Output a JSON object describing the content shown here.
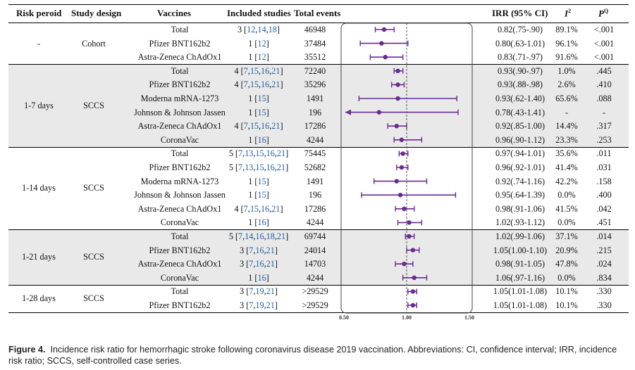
{
  "headers": {
    "risk_period": "Risk peroid",
    "study_design": "Study design",
    "vaccines": "Vaccines",
    "included_studies": "Included studies",
    "total_events": "Total events",
    "irr": "IRR (95% CI)",
    "i2": "I",
    "i2_sup": "2",
    "p2": "P",
    "p2_sup": "Q"
  },
  "groups": [
    {
      "period": "-",
      "design": "Cohort"
    },
    {
      "period": "1-7 days",
      "design": "SCCS"
    },
    {
      "period": "1-14 days",
      "design": "SCCS"
    },
    {
      "period": "1-21 days",
      "design": "SCCS"
    },
    {
      "period": "1-28 days",
      "design": "SCCS"
    }
  ],
  "rows": [
    {
      "vaccine": "Total",
      "n": "3",
      "refs": [
        "12",
        "14",
        "18"
      ],
      "events": "46948",
      "irr": "0.82(.75-.90)",
      "i2": "89.1%",
      "p": "<.001"
    },
    {
      "vaccine": "Pfizer BNT162b2",
      "n": "1",
      "refs": [
        "12"
      ],
      "events": "37484",
      "irr": "0.80(.63-1.01)",
      "i2": "96.1%",
      "p": "<.001"
    },
    {
      "vaccine": "Astra-Zeneca ChAdOx1",
      "n": "1",
      "refs": [
        "12"
      ],
      "events": "35512",
      "irr": "0.83(.71-.97)",
      "i2": "91.6%",
      "p": "<.001"
    },
    {
      "vaccine": "Total",
      "n": "4",
      "refs": [
        "7",
        "15",
        "16",
        "21"
      ],
      "events": "72240",
      "irr": "0.93(.90-.97)",
      "i2": "1.0%",
      "p": ".445"
    },
    {
      "vaccine": "Pfizer BNT162b2",
      "n": "4",
      "refs": [
        "7",
        "15",
        "16",
        "21"
      ],
      "events": "35296",
      "irr": "0.93(.88-.98)",
      "i2": "2.6%",
      "p": ".410"
    },
    {
      "vaccine": "Moderna mRNA-1273",
      "n": "1",
      "refs": [
        "15"
      ],
      "events": "1491",
      "irr": "0.93(.62-1.40)",
      "i2": "65.6%",
      "p": ".088"
    },
    {
      "vaccine": "Johnson & Johnson Jassen",
      "n": "1",
      "refs": [
        "15"
      ],
      "events": "196",
      "irr": "0.78(.43-1.41)",
      "i2": "-",
      "p": "-"
    },
    {
      "vaccine": "Astra-Zeneca ChAdOx1",
      "n": "4",
      "refs": [
        "7",
        "15",
        "16",
        "21"
      ],
      "events": "17286",
      "irr": "0.92(.85-1.00)",
      "i2": "14.4%",
      "p": ".317"
    },
    {
      "vaccine": "CoronaVac",
      "n": "1",
      "refs": [
        "16"
      ],
      "events": "4244",
      "irr": "0.96(.90-1.12)",
      "i2": "23.3%",
      "p": ".253"
    },
    {
      "vaccine": "Total",
      "n": "5",
      "refs": [
        "7",
        "13",
        "15",
        "16",
        "21"
      ],
      "events": "75445",
      "irr": "0.97(.94-1.01)",
      "i2": "35.6%",
      "p": ".011"
    },
    {
      "vaccine": "Pfizer BNT162b2",
      "n": "5",
      "refs": [
        "7",
        "13",
        "15",
        "16",
        "21"
      ],
      "events": "52682",
      "irr": "0.96(.92-1.01)",
      "i2": "41.4%",
      "p": ".031"
    },
    {
      "vaccine": "Moderna mRNA-1273",
      "n": "1",
      "refs": [
        "15"
      ],
      "events": "1491",
      "irr": "0.92(.74-1.16)",
      "i2": "42.2%",
      "p": ".158"
    },
    {
      "vaccine": "Johnson & Johnson Jassen",
      "n": "1",
      "refs": [
        "15"
      ],
      "events": "196",
      "irr": "0.95(.64-1.39)",
      "i2": "0.0%",
      "p": ".400"
    },
    {
      "vaccine": "Astra-Zeneca ChAdOx1",
      "n": "4",
      "refs": [
        "7",
        "15",
        "16",
        "21"
      ],
      "events": "17286",
      "irr": "0.98(.91-1.06)",
      "i2": "41.5%",
      "p": ".042"
    },
    {
      "vaccine": "CoronaVac",
      "n": "1",
      "refs": [
        "16"
      ],
      "events": "4244",
      "irr": "1.02(.93-1.12)",
      "i2": "0.0%",
      "p": ".451"
    },
    {
      "vaccine": "Total",
      "n": "5",
      "refs": [
        "7",
        "14",
        "16",
        "18",
        "21"
      ],
      "events": "69744",
      "irr": "1.02(.99-1.06)",
      "i2": "37.1%",
      "p": ".014"
    },
    {
      "vaccine": "Pfizer BNT162b2",
      "n": "3",
      "refs": [
        "7",
        "16",
        "21"
      ],
      "events": "24014",
      "irr": "1.05(1.00-1.10)",
      "i2": "20.9%",
      "p": ".215"
    },
    {
      "vaccine": "Astra-Zeneca ChAdOx1",
      "n": "3",
      "refs": [
        "7",
        "16",
        "21"
      ],
      "events": "14703",
      "irr": "0.98(.91-1.05)",
      "i2": "47.8%",
      "p": ".024"
    },
    {
      "vaccine": "CoronaVac",
      "n": "1",
      "refs": [
        "16"
      ],
      "events": "4244",
      "irr": "1.06(.97-1.16)",
      "i2": "0.0%",
      "p": ".834"
    },
    {
      "vaccine": "Total",
      "n": "3",
      "refs": [
        "7",
        "19",
        "21"
      ],
      "events": ">29529",
      "irr": "1.05(1.01-1.08)",
      "i2": "10.1%",
      "p": ".330"
    },
    {
      "vaccine": "Pfizer BNT162b2",
      "n": "3",
      "refs": [
        "7",
        "19",
        "21"
      ],
      "events": ">29529",
      "irr": "1.05(1.01-1.08)",
      "i2": "10.1%",
      "p": ".330"
    }
  ],
  "caption": {
    "label": "Figure 4.",
    "text": "Incidence risk ratio for hemorrhagic stroke following coronavirus disease 2019 vaccination. Abbreviations: CI, confidence interval; IRR, incidence risk ratio; SCCS, self-controlled case series."
  },
  "chart_data": {
    "type": "forest",
    "x_ticks": [
      "0.50",
      "1.00",
      "1.50"
    ],
    "xlim": [
      0.5,
      1.5
    ],
    "reference_line": 1.0,
    "marker_color": "#6a2b8f",
    "estimates": [
      {
        "est": 0.82,
        "lo": 0.75,
        "hi": 0.9
      },
      {
        "est": 0.8,
        "lo": 0.63,
        "hi": 1.01
      },
      {
        "est": 0.83,
        "lo": 0.71,
        "hi": 0.97
      },
      {
        "est": 0.93,
        "lo": 0.9,
        "hi": 0.97
      },
      {
        "est": 0.93,
        "lo": 0.88,
        "hi": 0.98
      },
      {
        "est": 0.93,
        "lo": 0.62,
        "hi": 1.4
      },
      {
        "est": 0.78,
        "lo": 0.43,
        "hi": 1.41,
        "clipped_low": true
      },
      {
        "est": 0.92,
        "lo": 0.85,
        "hi": 1.0
      },
      {
        "est": 0.96,
        "lo": 0.9,
        "hi": 1.12
      },
      {
        "est": 0.97,
        "lo": 0.94,
        "hi": 1.01
      },
      {
        "est": 0.96,
        "lo": 0.92,
        "hi": 1.01
      },
      {
        "est": 0.92,
        "lo": 0.74,
        "hi": 1.16
      },
      {
        "est": 0.95,
        "lo": 0.64,
        "hi": 1.39
      },
      {
        "est": 0.98,
        "lo": 0.91,
        "hi": 1.06
      },
      {
        "est": 1.02,
        "lo": 0.93,
        "hi": 1.12
      },
      {
        "est": 1.02,
        "lo": 0.99,
        "hi": 1.06
      },
      {
        "est": 1.05,
        "lo": 1.0,
        "hi": 1.1
      },
      {
        "est": 0.98,
        "lo": 0.91,
        "hi": 1.05
      },
      {
        "est": 1.06,
        "lo": 0.97,
        "hi": 1.16
      },
      {
        "est": 1.05,
        "lo": 1.01,
        "hi": 1.08
      },
      {
        "est": 1.05,
        "lo": 1.01,
        "hi": 1.08
      }
    ]
  }
}
